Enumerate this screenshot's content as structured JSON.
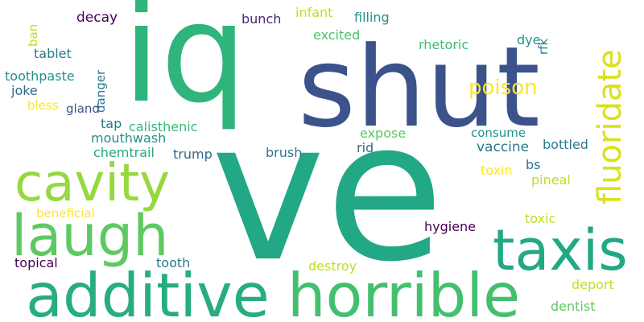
{
  "colors": {
    "background": "#ffffff",
    "palette": [
      "#440154",
      "#3b528b",
      "#21918c",
      "#5ec962",
      "#fde725",
      "#22a884",
      "#2a788e"
    ]
  },
  "words": {
    "ve": "ve",
    "iq": "iq",
    "shut": "shut",
    "laugh": "laugh",
    "additive": "additive",
    "horrible": "horrible",
    "taxis": "taxis",
    "cavity": "cavity",
    "fluoridate": "fluoridate",
    "poison": "poison",
    "decay": "decay",
    "bunch": "bunch",
    "infant": "infant",
    "filling": "filling",
    "excited": "excited",
    "rhetoric": "rhetoric",
    "dye": "dye",
    "rfk": "rfk",
    "ban": "ban",
    "tablet": "tablet",
    "toothpaste": "toothpaste",
    "danger": "danger",
    "joke": "joke",
    "bless": "bless",
    "gland": "gland",
    "tap": "tap",
    "calisthenic": "calisthenic",
    "mouthwash": "mouthwash",
    "chemtrail": "chemtrail",
    "trump": "trump",
    "brush": "brush",
    "expose": "expose",
    "rid": "rid",
    "consume": "consume",
    "vaccine": "vaccine",
    "bottled": "bottled",
    "toxin": "toxin",
    "bs": "bs",
    "pineal": "pineal",
    "beneficial": "beneficial",
    "hygiene": "hygiene",
    "toxic": "toxic",
    "topical": "topical",
    "tooth": "tooth",
    "destroy": "destroy",
    "deport": "deport",
    "dentist": "dentist"
  }
}
